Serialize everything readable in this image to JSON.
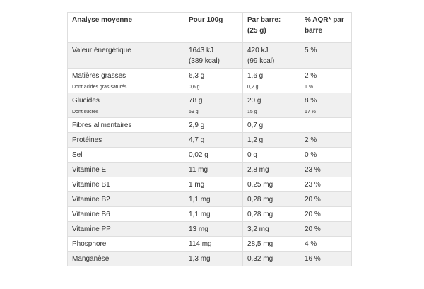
{
  "table": {
    "header": [
      [
        "Analyse moyenne"
      ],
      [
        "Pour 100g"
      ],
      [
        "Par barre:",
        "(25 g)"
      ],
      [
        "% AQR* par",
        "barre"
      ]
    ],
    "rows": [
      [
        {
          "text": [
            "Valeur énergétique"
          ]
        },
        {
          "text": [
            "1643 kJ",
            "(389 kcal)"
          ]
        },
        {
          "text": [
            "420 kJ",
            "(99 kcal)"
          ]
        },
        {
          "text": [
            "5 %"
          ]
        }
      ],
      [
        {
          "text": [
            "Matières grasses"
          ],
          "note": "Dont acides gras saturés"
        },
        {
          "text": [
            "6,3 g"
          ],
          "note": "0,6 g"
        },
        {
          "text": [
            "1,6 g"
          ],
          "note": "0,2 g"
        },
        {
          "text": [
            "2 %"
          ],
          "note": "1 %"
        }
      ],
      [
        {
          "text": [
            "Glucides"
          ],
          "note": "Dont sucres"
        },
        {
          "text": [
            "78 g"
          ],
          "note": "59 g"
        },
        {
          "text": [
            "20 g"
          ],
          "note": "15 g"
        },
        {
          "text": [
            "8 %"
          ],
          "note": "17 %"
        }
      ],
      [
        {
          "text": [
            "Fibres alimentaires"
          ]
        },
        {
          "text": [
            "2,9 g"
          ]
        },
        {
          "text": [
            "0,7 g"
          ]
        },
        null
      ],
      [
        {
          "text": [
            "Protéines"
          ]
        },
        {
          "text": [
            "4,7 g"
          ]
        },
        {
          "text": [
            "1,2 g"
          ]
        },
        {
          "text": [
            "2 %"
          ]
        }
      ],
      [
        {
          "text": [
            "Sel"
          ]
        },
        {
          "text": [
            "0,02 g"
          ]
        },
        {
          "text": [
            "0 g"
          ]
        },
        {
          "text": [
            "0 %"
          ]
        }
      ],
      [
        {
          "text": [
            "Vitamine E"
          ]
        },
        {
          "text": [
            "11 mg"
          ]
        },
        {
          "text": [
            "2,8 mg"
          ]
        },
        {
          "text": [
            "23 %"
          ]
        }
      ],
      [
        {
          "text": [
            "Vitamine B1"
          ]
        },
        {
          "text": [
            "1 mg"
          ]
        },
        {
          "text": [
            "0,25 mg"
          ]
        },
        {
          "text": [
            "23 %"
          ]
        }
      ],
      [
        {
          "text": [
            "Vitamine B2"
          ]
        },
        {
          "text": [
            "1,1 mg"
          ]
        },
        {
          "text": [
            "0,28 mg"
          ]
        },
        {
          "text": [
            "20 %"
          ]
        }
      ],
      [
        {
          "text": [
            "Vitamine B6"
          ]
        },
        {
          "text": [
            "1,1 mg"
          ]
        },
        {
          "text": [
            "0,28 mg"
          ]
        },
        {
          "text": [
            "20 %"
          ]
        }
      ],
      [
        {
          "text": [
            "Vitamine PP"
          ]
        },
        {
          "text": [
            "13 mg"
          ]
        },
        {
          "text": [
            "3,2 mg"
          ]
        },
        {
          "text": [
            "20 %"
          ]
        }
      ],
      [
        {
          "text": [
            "Phosphore"
          ]
        },
        {
          "text": [
            "114 mg"
          ]
        },
        {
          "text": [
            "28,5 mg"
          ]
        },
        {
          "text": [
            "4 %"
          ]
        }
      ],
      [
        {
          "text": [
            "Manganèse"
          ]
        },
        {
          "text": [
            "1,3 mg"
          ]
        },
        {
          "text": [
            "0,32 mg"
          ]
        },
        {
          "text": [
            "16 %"
          ]
        }
      ]
    ]
  }
}
